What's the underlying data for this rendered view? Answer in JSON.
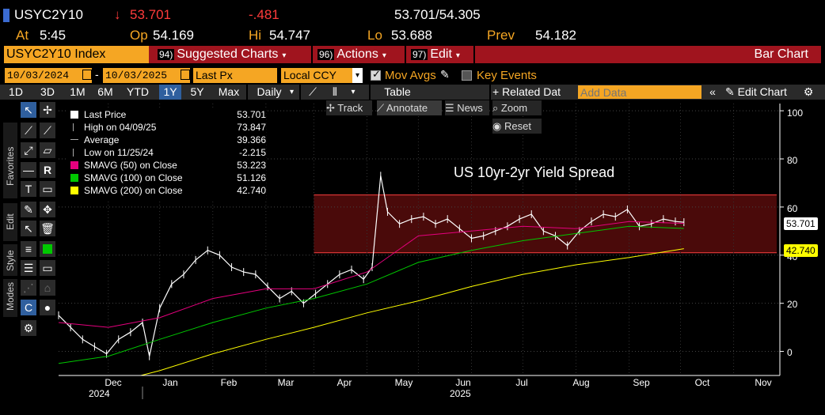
{
  "quote": {
    "ticker": "USYC2Y10",
    "last": "53.701",
    "change": "-.481",
    "bid_ask": "53.701/54.305",
    "at_label": "At",
    "time": "5:45",
    "open_label": "Op",
    "open": "54.169",
    "high_label": "Hi",
    "high": "54.747",
    "low_label": "Lo",
    "low": "53.688",
    "prev_label": "Prev",
    "prev": "54.182"
  },
  "function_bar": {
    "security": "USYC2Y10 Index",
    "menu": [
      {
        "num": "94)",
        "label": "Suggested Charts"
      },
      {
        "num": "96)",
        "label": "Actions"
      },
      {
        "num": "97)",
        "label": "Edit"
      }
    ],
    "chart_type": "Bar Chart"
  },
  "settings": {
    "start_date": "10/03/2024",
    "end_date": "10/03/2025",
    "field": "Last Px",
    "currency": "Local CCY",
    "mov_avgs_label": "Mov Avgs",
    "key_events_label": "Key Events"
  },
  "toolbar": {
    "periods": [
      "1D",
      "3D",
      "1M",
      "6M",
      "YTD",
      "1Y",
      "5Y",
      "Max"
    ],
    "selected_period": "1Y",
    "frequency": "Daily",
    "table_label": "Table",
    "related_label": "+ Related Dat",
    "add_data_placeholder": "Add Data",
    "edit_chart_label": "Edit Chart"
  },
  "chart_tools": {
    "track": "Track",
    "annotate": "Annotate",
    "news": "News",
    "zoom": "Zoom",
    "reset": "Reset"
  },
  "side_tabs": [
    "Favorites",
    "Edit",
    "Style",
    "Modes"
  ],
  "legend": [
    {
      "label": "Last Price",
      "value": "53.701",
      "color": "#ffffff"
    },
    {
      "label": "High on 04/09/25",
      "value": "73.847",
      "color": ""
    },
    {
      "label": "Average",
      "value": "39.366",
      "color": ""
    },
    {
      "label": "Low on 11/25/24",
      "value": "-2.215",
      "color": ""
    },
    {
      "label": "SMAVG (50)  on Close",
      "value": "53.223",
      "color": "#e6007e"
    },
    {
      "label": "SMAVG (100)  on Close",
      "value": "51.126",
      "color": "#00c800"
    },
    {
      "label": "SMAVG (200)  on Close",
      "value": "42.740",
      "color": "#ffff00"
    }
  ],
  "chart_data": {
    "type": "line",
    "title": "US 10yr-2yr Yield Spread",
    "ylim": [
      -10,
      103
    ],
    "yticks": [
      0,
      20,
      40,
      60,
      80,
      100
    ],
    "x_months": [
      "Dec",
      "Jan",
      "Feb",
      "Mar",
      "Apr",
      "May",
      "Jun",
      "Jul",
      "Aug",
      "Sep",
      "Oct",
      "Nov"
    ],
    "x_years": [
      "2024",
      "2025"
    ],
    "band": {
      "low": 41,
      "high": 65,
      "color": "#4a0a0a"
    },
    "series": [
      {
        "name": "Last Price",
        "color": "#ffffff",
        "x": [
          "2024-10-03",
          "2024-10-10",
          "2024-10-17",
          "2024-10-24",
          "2024-10-31",
          "2024-11-07",
          "2024-11-14",
          "2024-11-21",
          "2024-11-25",
          "2024-12-01",
          "2024-12-08",
          "2024-12-15",
          "2024-12-22",
          "2024-12-29",
          "2025-01-05",
          "2025-01-12",
          "2025-01-19",
          "2025-01-26",
          "2025-02-02",
          "2025-02-09",
          "2025-02-16",
          "2025-02-23",
          "2025-03-02",
          "2025-03-09",
          "2025-03-16",
          "2025-03-23",
          "2025-03-30",
          "2025-04-04",
          "2025-04-09",
          "2025-04-13",
          "2025-04-20",
          "2025-04-27",
          "2025-05-04",
          "2025-05-11",
          "2025-05-18",
          "2025-05-25",
          "2025-06-01",
          "2025-06-08",
          "2025-06-15",
          "2025-06-22",
          "2025-06-29",
          "2025-07-06",
          "2025-07-13",
          "2025-07-20",
          "2025-07-27",
          "2025-08-03",
          "2025-08-10",
          "2025-08-17",
          "2025-08-24",
          "2025-08-31",
          "2025-09-07",
          "2025-09-14",
          "2025-09-21",
          "2025-09-28",
          "2025-10-03"
        ],
        "y": [
          15,
          10,
          5,
          2,
          -1,
          5,
          8,
          12,
          -2,
          18,
          28,
          32,
          38,
          42,
          40,
          35,
          33,
          32,
          27,
          22,
          25,
          20,
          24,
          28,
          32,
          34,
          30,
          35,
          73,
          58,
          53,
          55,
          56,
          53,
          55,
          51,
          47,
          48,
          50,
          52,
          55,
          57,
          50,
          48,
          44,
          50,
          54,
          57,
          56,
          59,
          52,
          53,
          55,
          54,
          53.7
        ]
      },
      {
        "name": "SMAVG (50)  on Close",
        "color": "#e6007e",
        "x": [
          "2024-10-03",
          "2024-11-01",
          "2024-12-01",
          "2025-01-01",
          "2025-02-01",
          "2025-03-01",
          "2025-04-01",
          "2025-05-01",
          "2025-06-01",
          "2025-07-01",
          "2025-08-01",
          "2025-09-01",
          "2025-10-03"
        ],
        "y": [
          12,
          10,
          14,
          22,
          26,
          26,
          33,
          48,
          50,
          52,
          51,
          54,
          53.2
        ]
      },
      {
        "name": "SMAVG (100)  on Close",
        "color": "#00c800",
        "x": [
          "2024-10-03",
          "2024-11-01",
          "2024-12-01",
          "2025-01-01",
          "2025-02-01",
          "2025-03-01",
          "2025-04-01",
          "2025-05-01",
          "2025-06-01",
          "2025-07-01",
          "2025-08-01",
          "2025-09-01",
          "2025-10-03"
        ],
        "y": [
          -5,
          -2,
          5,
          12,
          18,
          22,
          28,
          37,
          42,
          46,
          49,
          52,
          51.1
        ]
      },
      {
        "name": "SMAVG (200)  on Close",
        "color": "#ffff00",
        "x": [
          "2024-11-20",
          "2024-12-01",
          "2025-01-01",
          "2025-02-01",
          "2025-03-01",
          "2025-04-01",
          "2025-05-01",
          "2025-06-01",
          "2025-07-01",
          "2025-08-01",
          "2025-09-01",
          "2025-10-03"
        ],
        "y": [
          -10,
          -8,
          -1,
          5,
          10,
          16,
          21,
          27,
          32,
          36,
          39,
          42.7
        ]
      }
    ],
    "last_value_label": "53.701",
    "sma200_value_label": "42.740"
  }
}
